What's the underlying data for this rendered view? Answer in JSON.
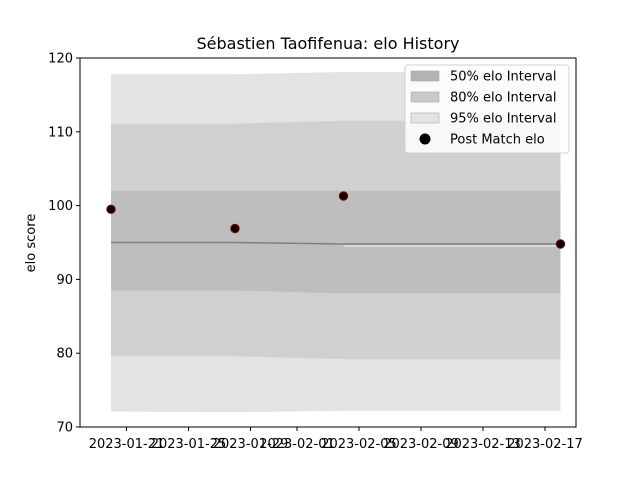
{
  "chart_data": {
    "type": "line",
    "title": "Sébastien Taofifenua: elo History",
    "xlabel": "",
    "ylabel": "elo score",
    "xlim": [
      "2023-01-18",
      "2023-02-19"
    ],
    "ylim": [
      70,
      120
    ],
    "x_ticks": [
      "2023-01-21",
      "2023-01-25",
      "2023-01-29",
      "2023-02-01",
      "2023-02-05",
      "2023-02-09",
      "2023-02-13",
      "2023-02-17"
    ],
    "y_ticks": [
      70,
      80,
      90,
      100,
      110,
      120
    ],
    "grid": false,
    "legend_position": "top-right",
    "mean_line": {
      "x": [
        "2023-01-20",
        "2023-01-28",
        "2023-02-04",
        "2023-02-18"
      ],
      "y": [
        95.0,
        95.0,
        94.8,
        94.8
      ]
    },
    "bands": [
      {
        "name": "95% elo Interval",
        "color": "#e3e3e3",
        "x": [
          "2023-01-20",
          "2023-01-28",
          "2023-02-04",
          "2023-02-18"
        ],
        "lower": [
          72.1,
          72.0,
          72.2,
          72.2
        ],
        "upper": [
          117.8,
          117.8,
          118.1,
          118.1
        ]
      },
      {
        "name": "80% elo Interval",
        "color": "#d0d0d0",
        "x": [
          "2023-01-20",
          "2023-01-28",
          "2023-02-04",
          "2023-02-18"
        ],
        "lower": [
          79.6,
          79.6,
          79.2,
          79.2
        ],
        "upper": [
          111.1,
          111.1,
          111.5,
          111.5
        ]
      },
      {
        "name": "50% elo Interval",
        "color": "#bebebe",
        "x": [
          "2023-01-20",
          "2023-01-28",
          "2023-02-04",
          "2023-02-18"
        ],
        "lower": [
          88.5,
          88.5,
          88.1,
          88.1
        ],
        "upper": [
          102.0,
          102.0,
          102.0,
          102.0
        ]
      }
    ],
    "points": {
      "name": "Post Match elo",
      "x": [
        "2023-01-20",
        "2023-01-28",
        "2023-02-04",
        "2023-02-18"
      ],
      "y": [
        99.5,
        96.9,
        101.3,
        94.8
      ]
    },
    "legend": [
      {
        "label": "50% elo Interval",
        "color": "#b3b3b3",
        "kind": "patch"
      },
      {
        "label": "80% elo Interval",
        "color": "#c9c9c9",
        "kind": "patch"
      },
      {
        "label": "95% elo Interval",
        "color": "#e3e3e3",
        "kind": "patch"
      },
      {
        "label": "Post Match elo",
        "color": "#000000",
        "kind": "marker"
      }
    ]
  }
}
